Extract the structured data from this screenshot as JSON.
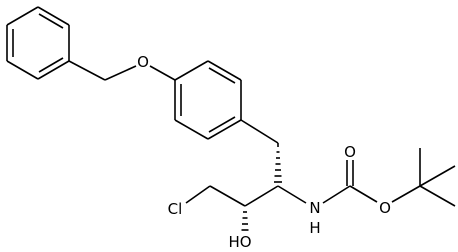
{
  "atoms": {
    "ether_o": "O",
    "cl": "Cl",
    "ho": "HO",
    "n": "N",
    "nh_h": "H",
    "carbonyl_o": "O",
    "ester_o": "O"
  }
}
